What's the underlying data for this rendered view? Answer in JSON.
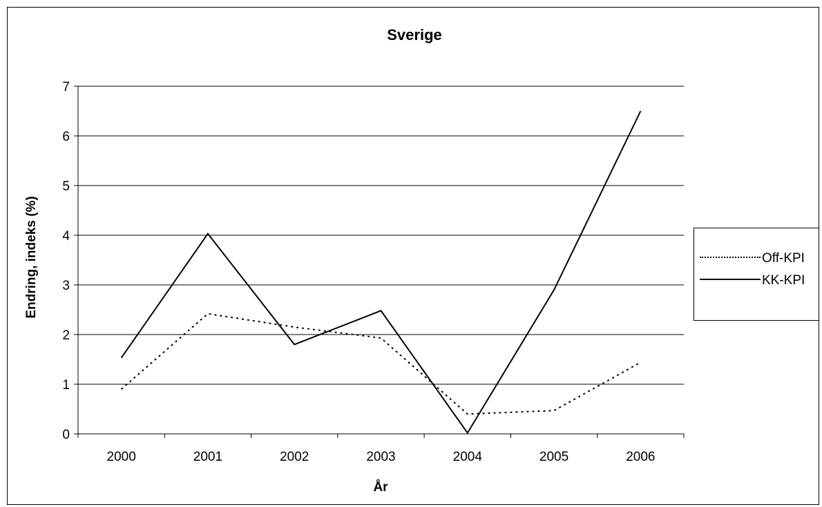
{
  "chart_data": {
    "type": "line",
    "title": "Sverige",
    "xlabel": "År",
    "ylabel": "Endring, indeks (%)",
    "categories": [
      "2000",
      "2001",
      "2002",
      "2003",
      "2004",
      "2005",
      "2006"
    ],
    "ylim": [
      0,
      7
    ],
    "yticks": [
      "0",
      "1",
      "2",
      "3",
      "4",
      "5",
      "6",
      "7"
    ],
    "grid": true,
    "legend_position": "right",
    "series": [
      {
        "name": "Off-KPI",
        "style": "dotted",
        "color": "#000000",
        "values": [
          0.9,
          2.42,
          2.15,
          1.93,
          0.4,
          0.47,
          1.44
        ]
      },
      {
        "name": "KK-KPI",
        "style": "solid",
        "color": "#000000",
        "values": [
          1.53,
          4.03,
          1.8,
          2.48,
          0.02,
          2.9,
          6.5
        ]
      }
    ]
  }
}
